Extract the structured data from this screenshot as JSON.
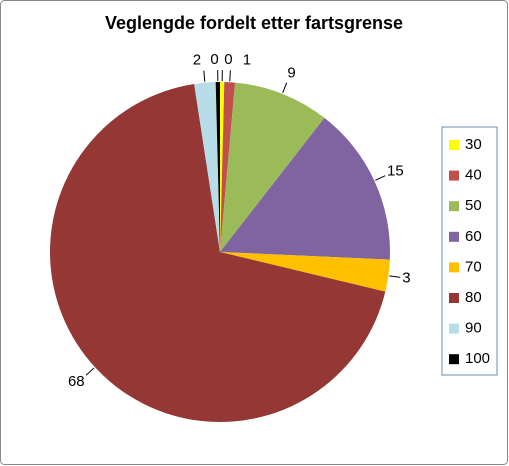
{
  "chart_data": {
    "type": "pie",
    "title": "Veglengde fordelt etter fartsgrense",
    "categories": [
      "30",
      "40",
      "50",
      "60",
      "70",
      "80",
      "90",
      "100"
    ],
    "values": [
      0.4,
      1,
      9,
      15,
      3,
      68,
      2,
      0.4
    ],
    "value_labels": [
      "0",
      "1",
      "9",
      "15",
      "3",
      "68",
      "2",
      "0"
    ],
    "colors": [
      "#ffff00",
      "#c0504d",
      "#9bbb59",
      "#8064a2",
      "#ffc000",
      "#953735",
      "#b7dee8",
      "#000000"
    ],
    "legend": "right"
  }
}
